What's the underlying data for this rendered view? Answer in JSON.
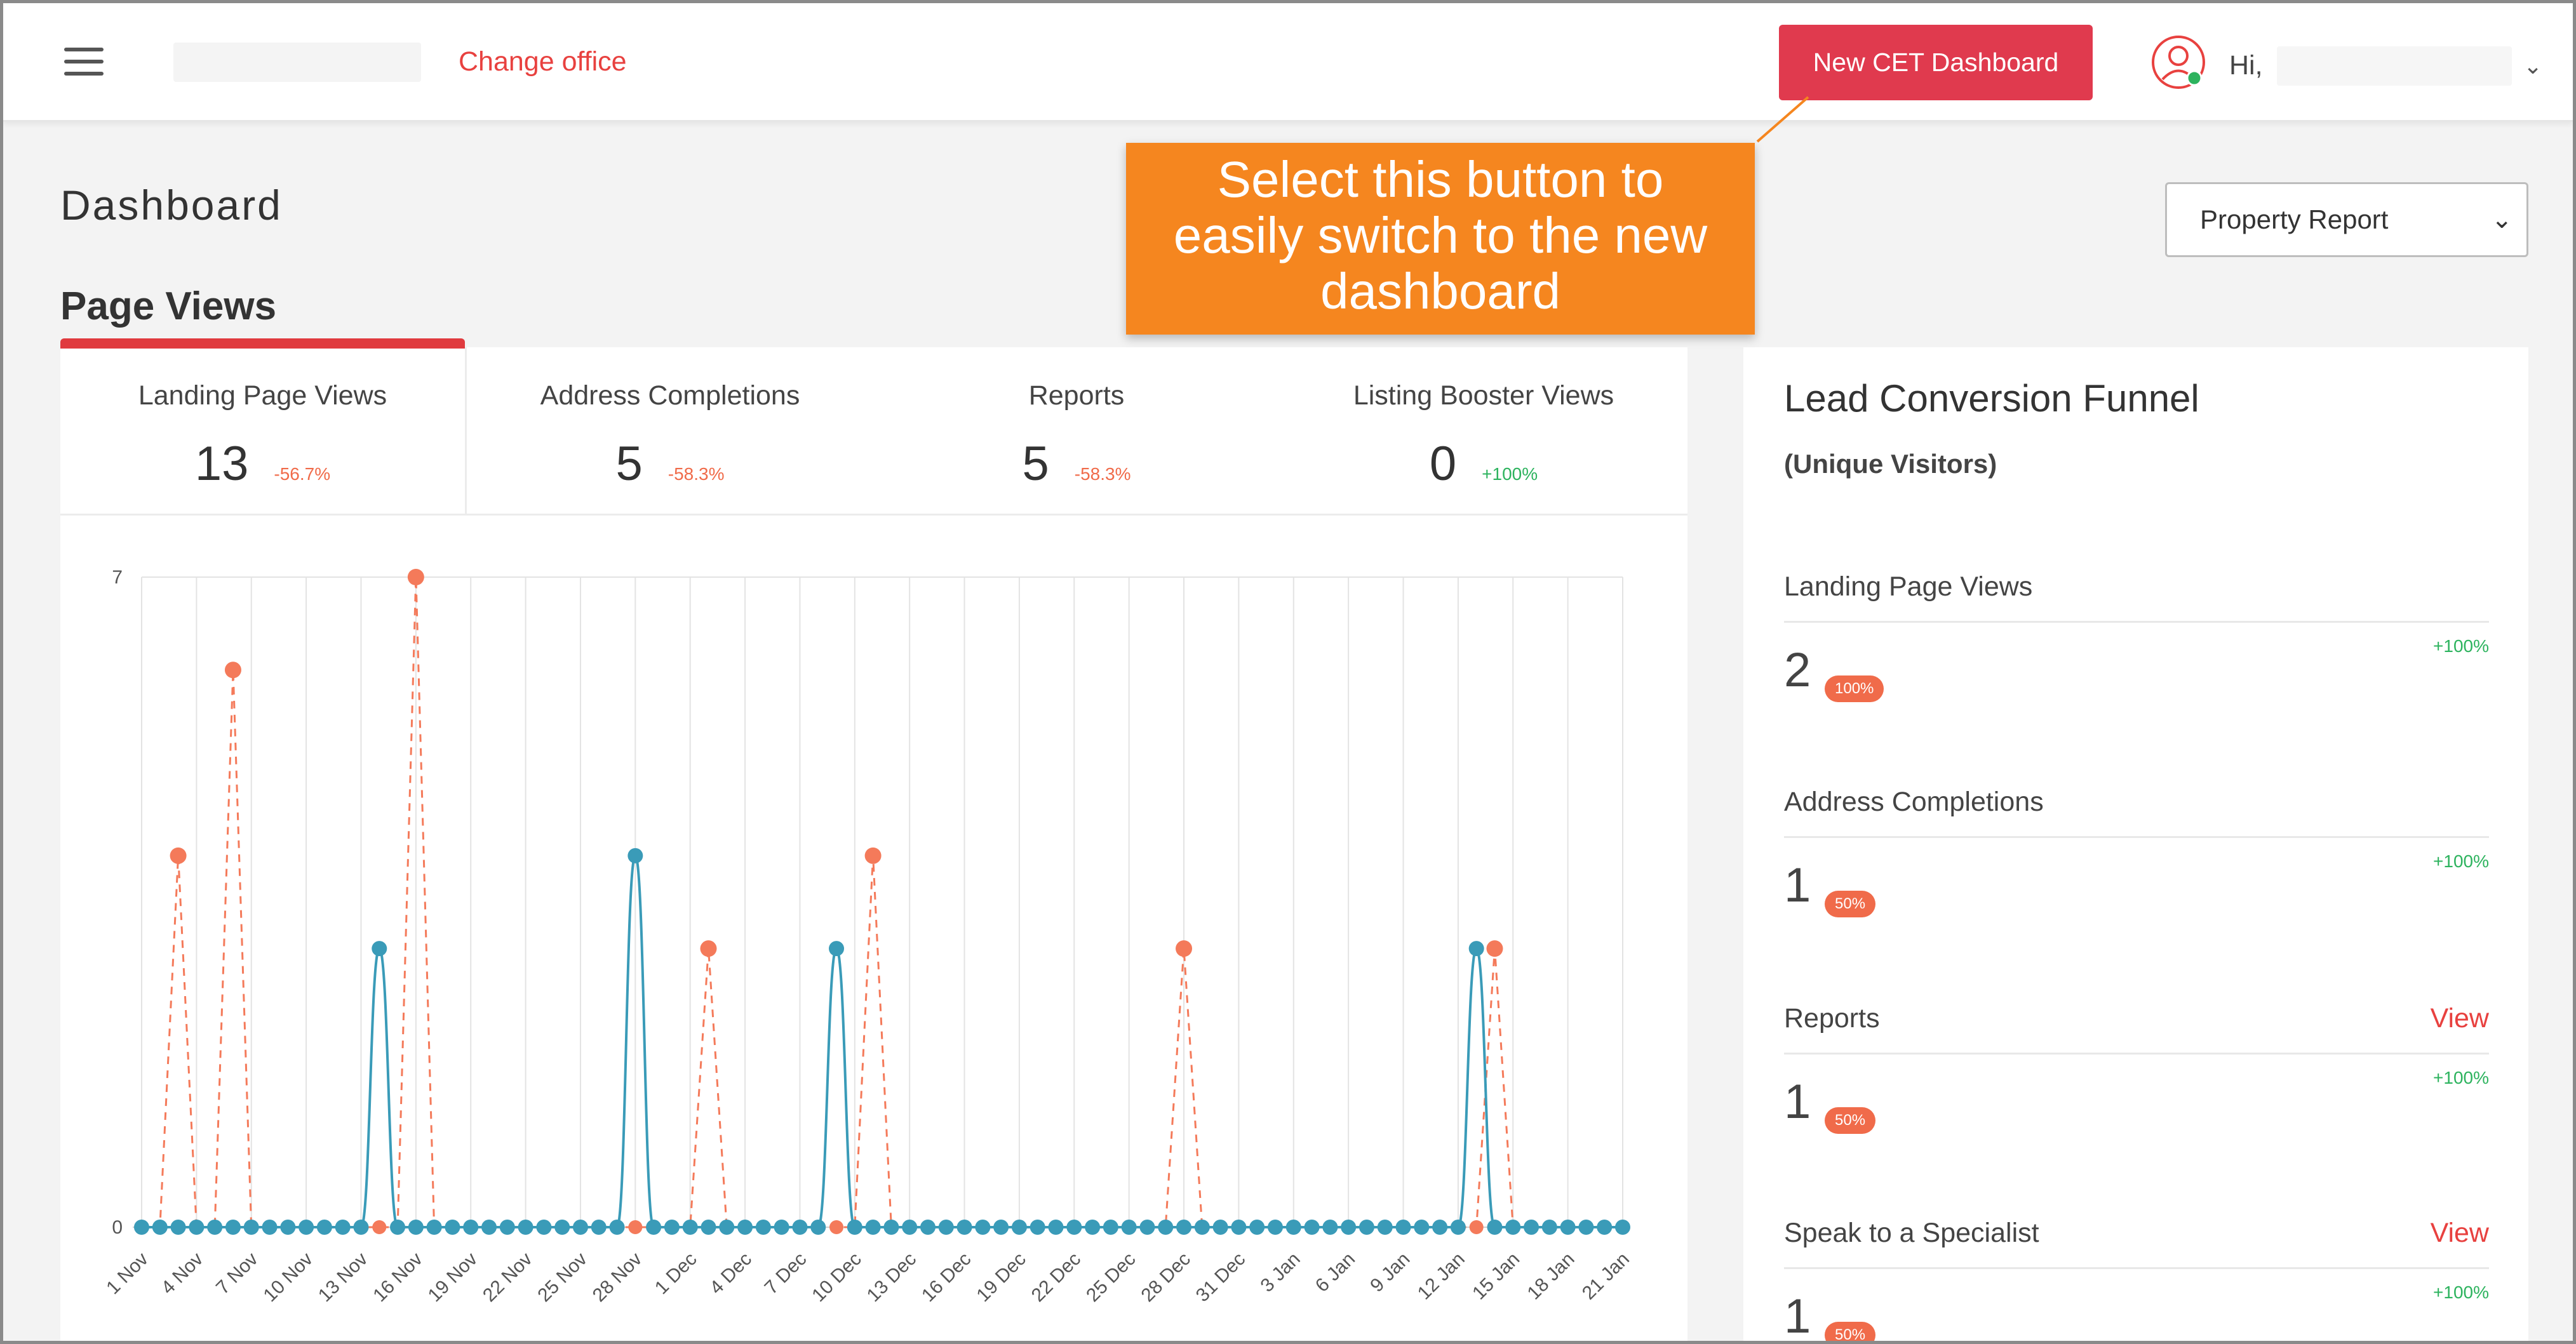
{
  "header": {
    "change_office": "Change office",
    "cet_button": "New CET Dashboard",
    "greeting": "Hi,",
    "caret": "⌄"
  },
  "page": {
    "title": "Dashboard",
    "section_title": "Page Views",
    "report_select": "Property Report",
    "report_caret": "⌄"
  },
  "callout": {
    "lines": [
      "Select this button to",
      "easily switch to the new",
      "dashboard"
    ]
  },
  "tabs": [
    {
      "label": "Landing Page Views",
      "value": "13",
      "change": "-56.7%",
      "trend": "neg"
    },
    {
      "label": "Address Completions",
      "value": "5",
      "change": "-58.3%",
      "trend": "neg"
    },
    {
      "label": "Reports",
      "value": "5",
      "change": "-58.3%",
      "trend": "neg"
    },
    {
      "label": "Listing Booster Views",
      "value": "0",
      "change": "+100%",
      "trend": "pos"
    }
  ],
  "funnel": {
    "title": "Lead Conversion Funnel",
    "subtitle": "(Unique Visitors)",
    "stages": [
      {
        "label": "Landing Page Views",
        "value": "2",
        "badge": "100%",
        "change": "+100%",
        "view": ""
      },
      {
        "label": "Address Completions",
        "value": "1",
        "badge": "50%",
        "change": "+100%",
        "view": ""
      },
      {
        "label": "Reports",
        "value": "1",
        "badge": "50%",
        "change": "+100%",
        "view": "View"
      },
      {
        "label": "Speak to a Specialist",
        "value": "1",
        "badge": "50%",
        "change": "+100%",
        "view": "View"
      }
    ]
  },
  "colors": {
    "accent_red": "#e03a4e",
    "series_current": "#3a9bb8",
    "series_previous": "#f47a5a",
    "callout_orange": "#f5861f"
  },
  "icons": {
    "menu": "hamburger-icon",
    "avatar": "user-avatar-icon"
  },
  "chart_data": {
    "type": "line",
    "ylim": [
      0,
      7
    ],
    "yticks": [
      "0",
      "7"
    ],
    "xtick_labels": [
      "1 Nov",
      "4 Nov",
      "7 Nov",
      "10 Nov",
      "13 Nov",
      "16 Nov",
      "19 Nov",
      "22 Nov",
      "25 Nov",
      "28 Nov",
      "1 Dec",
      "4 Dec",
      "7 Dec",
      "10 Dec",
      "13 Dec",
      "16 Dec",
      "19 Dec",
      "22 Dec",
      "25 Dec",
      "28 Dec",
      "31 Dec",
      "3 Jan",
      "6 Jan",
      "9 Jan",
      "12 Jan",
      "15 Jan",
      "18 Jan",
      "21 Jan"
    ],
    "x_count": 82,
    "series": [
      {
        "style": "solid",
        "color": "#3a9bb8",
        "points": [
          [
            13,
            3
          ],
          [
            27,
            4
          ],
          [
            38,
            3
          ],
          [
            73,
            3
          ]
        ]
      },
      {
        "style": "dashed",
        "color": "#f47a5a",
        "points": [
          [
            2,
            4
          ],
          [
            5,
            6
          ],
          [
            15,
            7
          ],
          [
            31,
            3
          ],
          [
            40,
            4
          ],
          [
            57,
            3
          ],
          [
            74,
            3
          ]
        ]
      }
    ]
  }
}
